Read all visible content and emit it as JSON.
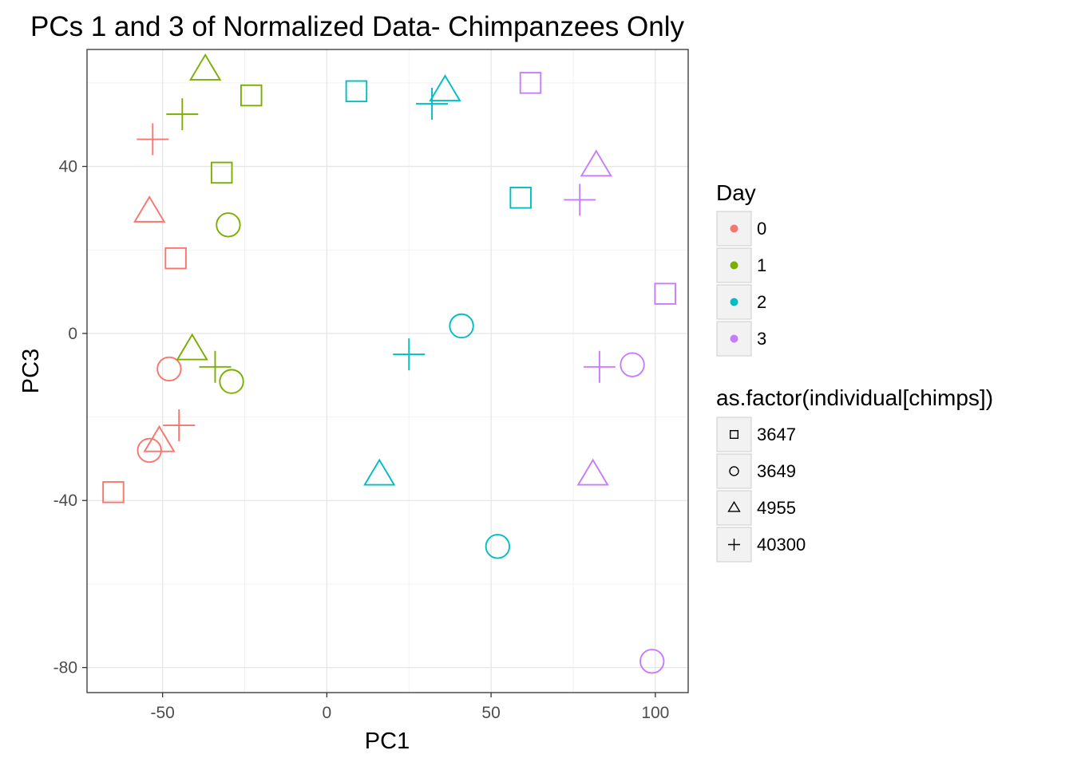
{
  "chart_data": {
    "type": "scatter",
    "title": "PCs 1 and 3 of Normalized Data- Chimpanzees Only",
    "xlabel": "PC1",
    "ylabel": "PC3",
    "xlim": [
      -73,
      110
    ],
    "ylim": [
      -86,
      68
    ],
    "x_ticks": [
      -50,
      0,
      50,
      100
    ],
    "x_tick_labels": [
      "-50",
      "0",
      "50",
      "100"
    ],
    "y_ticks": [
      -80,
      -40,
      0,
      40
    ],
    "y_tick_labels": [
      "-80",
      "-40",
      "0",
      "40"
    ],
    "grid": true,
    "legend_position": "right",
    "color_legend": {
      "title": "Day",
      "entries": [
        {
          "label": "0",
          "color": "#F8766D"
        },
        {
          "label": "1",
          "color": "#7CAE00"
        },
        {
          "label": "2",
          "color": "#00BFC4"
        },
        {
          "label": "3",
          "color": "#C77CFF"
        }
      ]
    },
    "shape_legend": {
      "title": "as.factor(individual[chimps])",
      "entries": [
        {
          "label": "3647",
          "shape": "square"
        },
        {
          "label": "3649",
          "shape": "circle"
        },
        {
          "label": "4955",
          "shape": "triangle"
        },
        {
          "label": "40300",
          "shape": "plus"
        }
      ]
    },
    "points": [
      {
        "x": -65,
        "y": -38,
        "day": "0",
        "individual": "3647"
      },
      {
        "x": -46,
        "y": 18,
        "day": "0",
        "individual": "3647"
      },
      {
        "x": -54,
        "y": -28,
        "day": "0",
        "individual": "3649"
      },
      {
        "x": -48,
        "y": -8.5,
        "day": "0",
        "individual": "3649"
      },
      {
        "x": -54,
        "y": 29,
        "day": "0",
        "individual": "4955"
      },
      {
        "x": -51,
        "y": -26,
        "day": "0",
        "individual": "4955"
      },
      {
        "x": -53,
        "y": 46.5,
        "day": "0",
        "individual": "40300"
      },
      {
        "x": -45,
        "y": -22,
        "day": "0",
        "individual": "40300"
      },
      {
        "x": -23,
        "y": 57,
        "day": "1",
        "individual": "3647"
      },
      {
        "x": -32,
        "y": 38.5,
        "day": "1",
        "individual": "3647"
      },
      {
        "x": -30,
        "y": 26,
        "day": "1",
        "individual": "3649"
      },
      {
        "x": -29,
        "y": -11.5,
        "day": "1",
        "individual": "3649"
      },
      {
        "x": -37,
        "y": 63,
        "day": "1",
        "individual": "4955"
      },
      {
        "x": -41,
        "y": -4,
        "day": "1",
        "individual": "4955"
      },
      {
        "x": -44,
        "y": 52.5,
        "day": "1",
        "individual": "40300"
      },
      {
        "x": -34,
        "y": -8,
        "day": "1",
        "individual": "40300"
      },
      {
        "x": 9,
        "y": 58,
        "day": "2",
        "individual": "3647"
      },
      {
        "x": 59,
        "y": 32.5,
        "day": "2",
        "individual": "3647"
      },
      {
        "x": 41,
        "y": 1.8,
        "day": "2",
        "individual": "3649"
      },
      {
        "x": 52,
        "y": -51,
        "day": "2",
        "individual": "3649"
      },
      {
        "x": 36,
        "y": 58,
        "day": "2",
        "individual": "4955"
      },
      {
        "x": 16,
        "y": -34,
        "day": "2",
        "individual": "4955"
      },
      {
        "x": 32,
        "y": 55,
        "day": "2",
        "individual": "40300"
      },
      {
        "x": 25,
        "y": -5,
        "day": "2",
        "individual": "40300"
      },
      {
        "x": 62,
        "y": 60,
        "day": "3",
        "individual": "3647"
      },
      {
        "x": 103,
        "y": 9.5,
        "day": "3",
        "individual": "3647"
      },
      {
        "x": 93,
        "y": -7.5,
        "day": "3",
        "individual": "3649"
      },
      {
        "x": 99,
        "y": -78.5,
        "day": "3",
        "individual": "3649"
      },
      {
        "x": 82,
        "y": 40,
        "day": "3",
        "individual": "4955"
      },
      {
        "x": 81,
        "y": -34,
        "day": "3",
        "individual": "4955"
      },
      {
        "x": 77,
        "y": 32,
        "day": "3",
        "individual": "40300"
      },
      {
        "x": 83,
        "y": -8,
        "day": "3",
        "individual": "40300"
      }
    ]
  }
}
